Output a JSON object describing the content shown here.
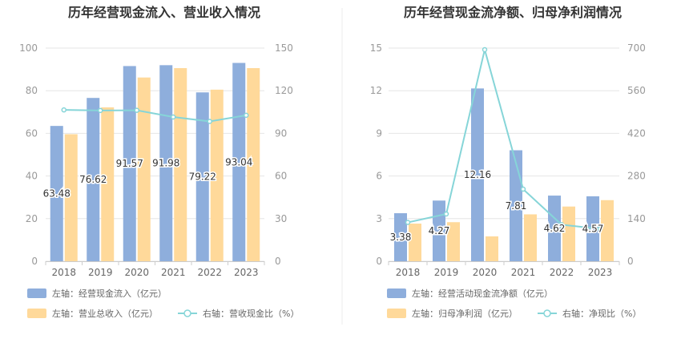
{
  "colors": {
    "bar1": "#8eaedc",
    "bar2": "#ffd99a",
    "line": "#86d5d8",
    "grid": "#e6e6e6",
    "divider": "#eeeeee"
  },
  "chart_data": [
    {
      "type": "bar",
      "title": "历年经营现金流入、营业收入情况",
      "categories": [
        "2018",
        "2019",
        "2020",
        "2021",
        "2022",
        "2023"
      ],
      "y_left": {
        "ylim": [
          0,
          100
        ],
        "ticks": [
          0,
          20,
          40,
          60,
          80,
          100
        ]
      },
      "y_right": {
        "ylim": [
          0,
          150
        ],
        "ticks": [
          0,
          30,
          60,
          90,
          120,
          150
        ]
      },
      "series": [
        {
          "name": "左轴：经营现金流入（亿元）",
          "kind": "bar",
          "axis": "left",
          "color": "#8eaedc",
          "values": [
            63.48,
            76.62,
            91.57,
            91.98,
            79.22,
            93.04
          ],
          "labels": [
            "63.48",
            "76.62",
            "91.57",
            "91.98",
            "79.22",
            "93.04"
          ]
        },
        {
          "name": "左轴：营业总收入（亿元）",
          "kind": "bar",
          "axis": "left",
          "color": "#ffd99a",
          "values": [
            59.6,
            72.2,
            86.2,
            90.6,
            80.5,
            90.6
          ]
        },
        {
          "name": "右轴：营收现金比（%）",
          "kind": "line",
          "axis": "right",
          "color": "#86d5d8",
          "values": [
            106.5,
            106.1,
            106.2,
            101.5,
            98.4,
            102.7
          ]
        }
      ],
      "legend": "bottom"
    },
    {
      "type": "bar",
      "title": "历年经营现金流净额、归母净利润情况",
      "categories": [
        "2018",
        "2019",
        "2020",
        "2021",
        "2022",
        "2023"
      ],
      "y_left": {
        "ylim": [
          0,
          15
        ],
        "ticks": [
          0,
          3,
          6,
          9,
          12,
          15
        ]
      },
      "y_right": {
        "ylim": [
          0,
          700
        ],
        "ticks": [
          0,
          140,
          280,
          420,
          560,
          700
        ]
      },
      "series": [
        {
          "name": "左轴：经营活动现金流净额（亿元）",
          "kind": "bar",
          "axis": "left",
          "color": "#8eaedc",
          "values": [
            3.38,
            4.27,
            12.16,
            7.81,
            4.62,
            4.57
          ],
          "labels": [
            "3.38",
            "4.27",
            "12.16",
            "7.81",
            "4.62",
            "4.57"
          ]
        },
        {
          "name": "左轴：归母净利润（亿元）",
          "kind": "bar",
          "axis": "left",
          "color": "#ffd99a",
          "values": [
            2.65,
            2.75,
            1.75,
            3.3,
            3.85,
            4.3
          ]
        },
        {
          "name": "右轴：净现比（%）",
          "kind": "line",
          "axis": "right",
          "color": "#86d5d8",
          "values": [
            127.5,
            155.3,
            694.9,
            236.7,
            120.0,
            106.3
          ]
        }
      ],
      "legend": "bottom"
    }
  ]
}
